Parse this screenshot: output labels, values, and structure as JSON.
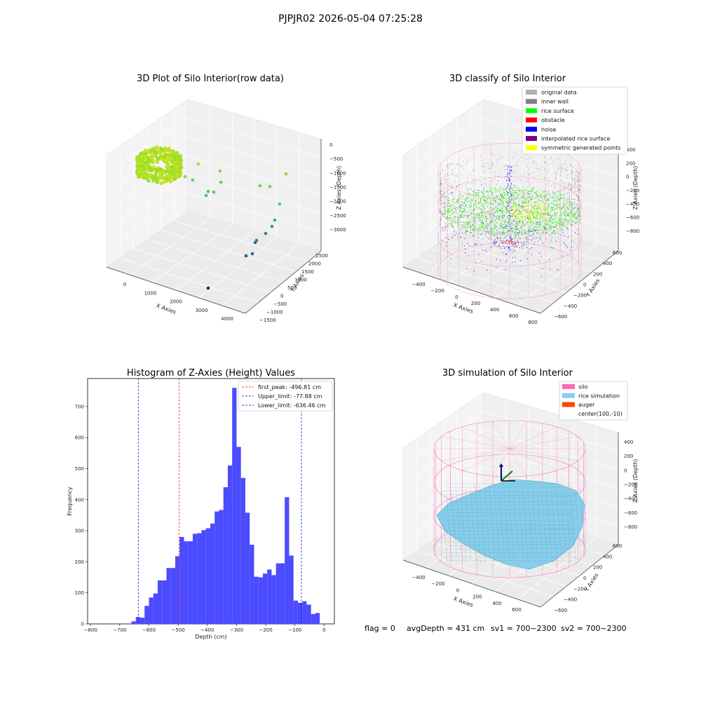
{
  "figure_title": "PJPJR02 2026-05-04 07:25:28",
  "footer": {
    "flag": "flag = 0",
    "avg_depth": "avgDepth = 431 cm",
    "sv1": "sv1 = 700~2300",
    "sv2": "sv2 = 700~2300"
  },
  "colors": {
    "hist_bar": "#4b4bff",
    "first_peak_line": "#ff0000",
    "limit_line": "#0000cc",
    "silo": "#ff69b4",
    "rice_simulation": "#87ceeb",
    "auger": "#ff4500",
    "original_data": "#b0b0b0",
    "inner_wall": "#808080",
    "rice_surface": "#00ff00",
    "obstacle": "#ff0000",
    "noise": "#0000ff",
    "interpolated_rice_surface": "#800080",
    "symmetric_generated_points": "#ffff00"
  },
  "chart_data": [
    {
      "type": "scatter",
      "title": "3D Plot of Silo Interior(row data)",
      "xlabel": "X Axies",
      "ylabel": "Y Axies",
      "zlabel": "Z Axies (Depth)",
      "x_ticks": [
        "0",
        "1000",
        "2000",
        "3000",
        "4000"
      ],
      "y_ticks": [
        "−1500",
        "−1000",
        "−500",
        "0",
        "500",
        "1000",
        "1500",
        "2000",
        "2500"
      ],
      "z_ticks": [
        "0",
        "−500",
        "−1000",
        "−1500",
        "−2000",
        "−2500",
        "−3000"
      ]
    },
    {
      "type": "scatter",
      "title": "3D classify of Silo Interior",
      "xlabel": "X Axies",
      "ylabel": "Y Axies",
      "zlabel": "Z Axies (Depth)",
      "x_ticks": [
        "−400",
        "−200",
        "0",
        "200",
        "400",
        "600",
        "800"
      ],
      "y_ticks": [
        "−600",
        "−400",
        "−200",
        "0",
        "200",
        "400",
        "600"
      ],
      "z_ticks": [
        "400",
        "200",
        "0",
        "−200",
        "−400",
        "−600",
        "−800"
      ],
      "legend": [
        "original data",
        "inner wall",
        "rice surface",
        "obstacle",
        "noise",
        "interpolated rice surface",
        "symmetric generated points"
      ]
    },
    {
      "type": "bar",
      "title": "Histogram of Z-Axies (Height) Values",
      "xlabel": "Depth (cm)",
      "ylabel": "Frequency",
      "xlim": [
        -810,
        35
      ],
      "ylim": [
        0,
        790
      ],
      "x_ticks": [
        -800,
        -700,
        -600,
        -500,
        -400,
        -300,
        -200,
        -100,
        0
      ],
      "x_tick_labels": [
        "−800",
        "−700",
        "−600",
        "−500",
        "−400",
        "−300",
        "−200",
        "−100",
        "0"
      ],
      "y_ticks": [
        0,
        100,
        200,
        300,
        400,
        500,
        600,
        700
      ],
      "bin_start": -660,
      "bin_width": 15,
      "values": [
        8,
        22,
        20,
        58,
        85,
        98,
        140,
        140,
        180,
        180,
        218,
        280,
        266,
        266,
        290,
        292,
        302,
        308,
        323,
        362,
        367,
        440,
        510,
        760,
        570,
        470,
        358,
        255,
        152,
        150,
        162,
        175,
        157,
        195,
        195,
        408,
        220,
        75,
        68,
        73,
        62,
        32,
        35
      ],
      "vlines": [
        {
          "label": "first_peak: -496.81 cm",
          "x": -496.81,
          "color": "#ff0000"
        },
        {
          "label": "Upper_limit: -77.88 cm",
          "x": -77.88,
          "color": "#0000cc"
        },
        {
          "label": "Lower_limit: -636.46 cm",
          "x": -636.46,
          "color": "#0000cc"
        }
      ]
    },
    {
      "type": "scatter",
      "title": "3D simulation of Silo Interior",
      "xlabel": "X Axies",
      "ylabel": "Y Axies",
      "zlabel": "Z Axies (Depth)",
      "x_ticks": [
        "−400",
        "−200",
        "0",
        "200",
        "400",
        "600"
      ],
      "y_ticks": [
        "−600",
        "−400",
        "−200",
        "0",
        "200",
        "400",
        "600"
      ],
      "z_ticks": [
        "400",
        "200",
        "0",
        "−200",
        "−400",
        "−600",
        "−800"
      ],
      "legend": [
        "silo",
        "rice simulation",
        "auger",
        "center(100,-10)"
      ]
    }
  ]
}
